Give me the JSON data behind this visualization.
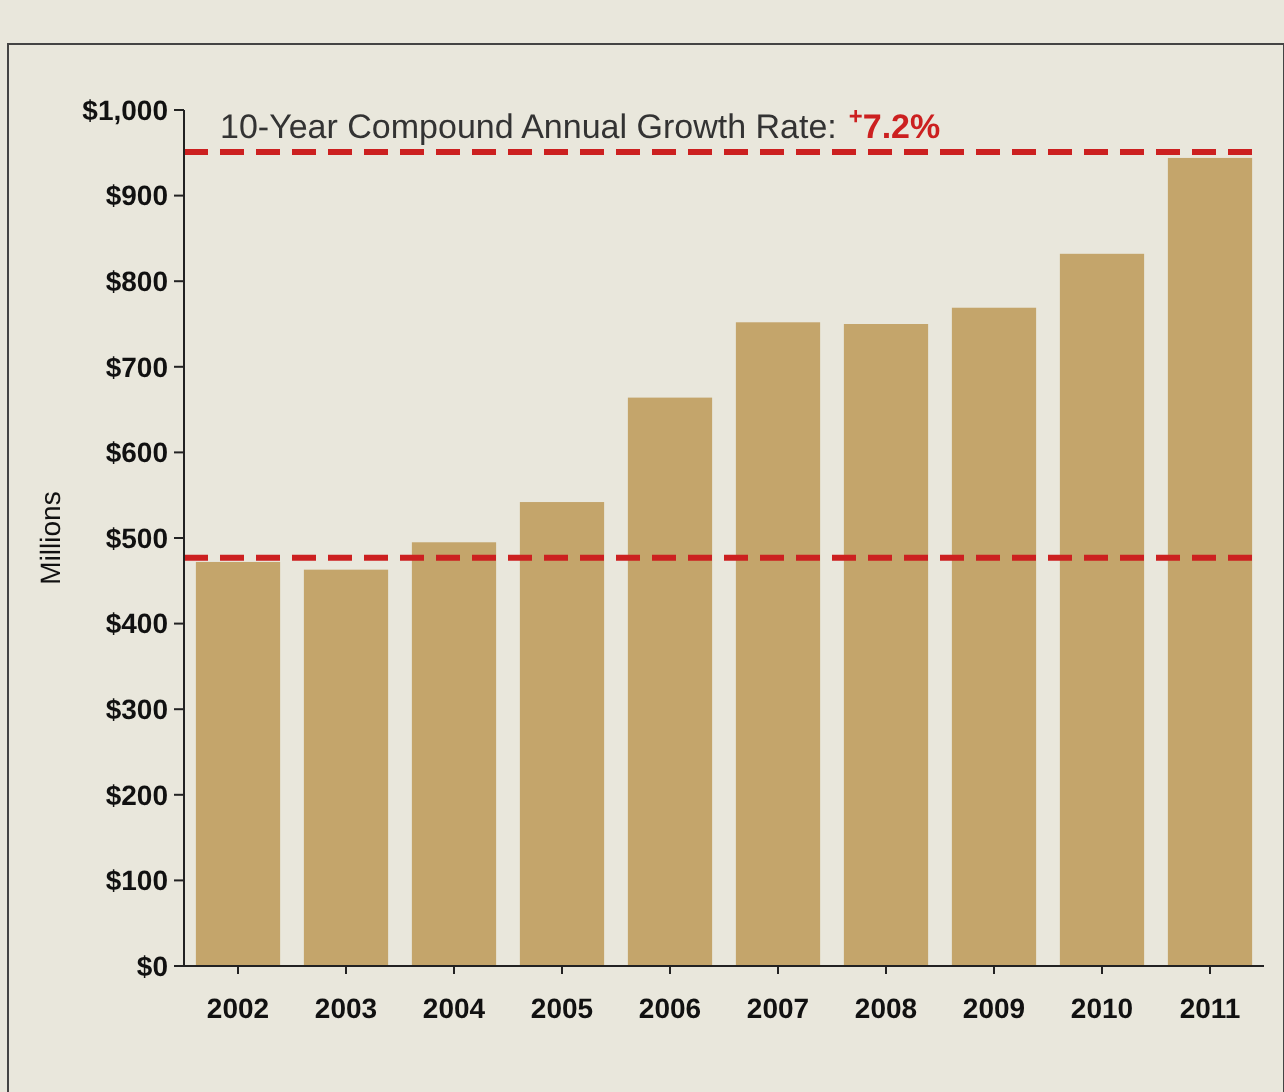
{
  "chart_data": {
    "type": "bar",
    "ylabel": "Millions",
    "categories": [
      "2002",
      "2003",
      "2004",
      "2005",
      "2006",
      "2007",
      "2008",
      "2009",
      "2010",
      "2011"
    ],
    "values": [
      472,
      463,
      495,
      542,
      664,
      752,
      750,
      769,
      832,
      944
    ],
    "color": "#c4a56b",
    "ylim": [
      0,
      1000
    ],
    "yticks": [
      {
        "value": 0,
        "label": "$0"
      },
      {
        "value": 100,
        "label": "$100"
      },
      {
        "value": 200,
        "label": "$200"
      },
      {
        "value": 300,
        "label": "$300"
      },
      {
        "value": 400,
        "label": "$400"
      },
      {
        "value": 500,
        "label": "$500"
      },
      {
        "value": 600,
        "label": "$600"
      },
      {
        "value": 700,
        "label": "$700"
      },
      {
        "value": 800,
        "label": "$800"
      },
      {
        "value": 900,
        "label": "$900"
      },
      {
        "value": 1000,
        "label": "$1,000"
      }
    ],
    "ref_lines": [
      {
        "axis": "y",
        "value": 477,
        "color": "#cc2020",
        "line_style": "dashed"
      },
      {
        "axis": "y",
        "value": 951,
        "color": "#cc2020",
        "line_style": "dashed"
      }
    ],
    "annotations": [
      "10-Year Compound Annual Growth Rate:",
      "$^{+}$7.2%"
    ],
    "grid": false
  }
}
